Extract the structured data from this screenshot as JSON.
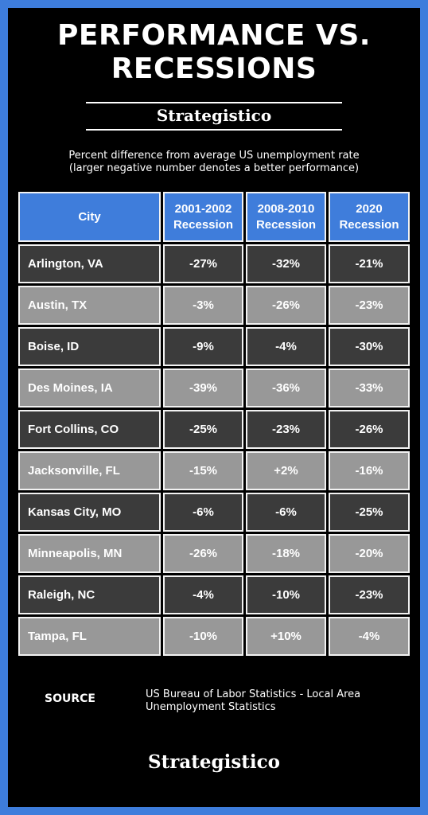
{
  "header": {
    "title_line1": "PERFORMANCE VS.",
    "title_line2": "RECESSIONS",
    "brand": "Strategistico",
    "subtitle_line1": "Percent difference from average US unemployment rate",
    "subtitle_line2": "(larger negative number denotes a better performance)"
  },
  "colors": {
    "frame": "#3e7ddc",
    "background": "#000000",
    "header_cell": "#3f7ddb",
    "row_dark": "#3b3b3b",
    "row_light": "#989898"
  },
  "chart_data": {
    "type": "table",
    "columns": [
      "City",
      "2001-2002 Recession",
      "2008-2010 Recession",
      "2020 Recession"
    ],
    "column_lines": [
      [
        "City"
      ],
      [
        "2001-2002",
        "Recession"
      ],
      [
        "2008-2010",
        "Recession"
      ],
      [
        "2020",
        "Recession"
      ]
    ],
    "rows": [
      [
        "Arlington, VA",
        "-27%",
        "-32%",
        "-21%"
      ],
      [
        "Austin, TX",
        "-3%",
        "-26%",
        "-23%"
      ],
      [
        "Boise, ID",
        "-9%",
        "-4%",
        "-30%"
      ],
      [
        "Des Moines, IA",
        "-39%",
        "-36%",
        "-33%"
      ],
      [
        "Fort Collins, CO",
        "-25%",
        "-23%",
        "-26%"
      ],
      [
        "Jacksonville, FL",
        "-15%",
        "+2%",
        "-16%"
      ],
      [
        "Kansas City, MO",
        "-6%",
        "-6%",
        "-25%"
      ],
      [
        "Minneapolis, MN",
        "-26%",
        "-18%",
        "-20%"
      ],
      [
        "Raleigh, NC",
        "-4%",
        "-10%",
        "-23%"
      ],
      [
        "Tampa, FL",
        "-10%",
        "+10%",
        "-4%"
      ]
    ]
  },
  "footer": {
    "source_label": "SOURCE",
    "source_line1": "US Bureau of Labor Statistics - Local Area",
    "source_line2": "Unemployment Statistics",
    "brand": "Strategistico"
  }
}
